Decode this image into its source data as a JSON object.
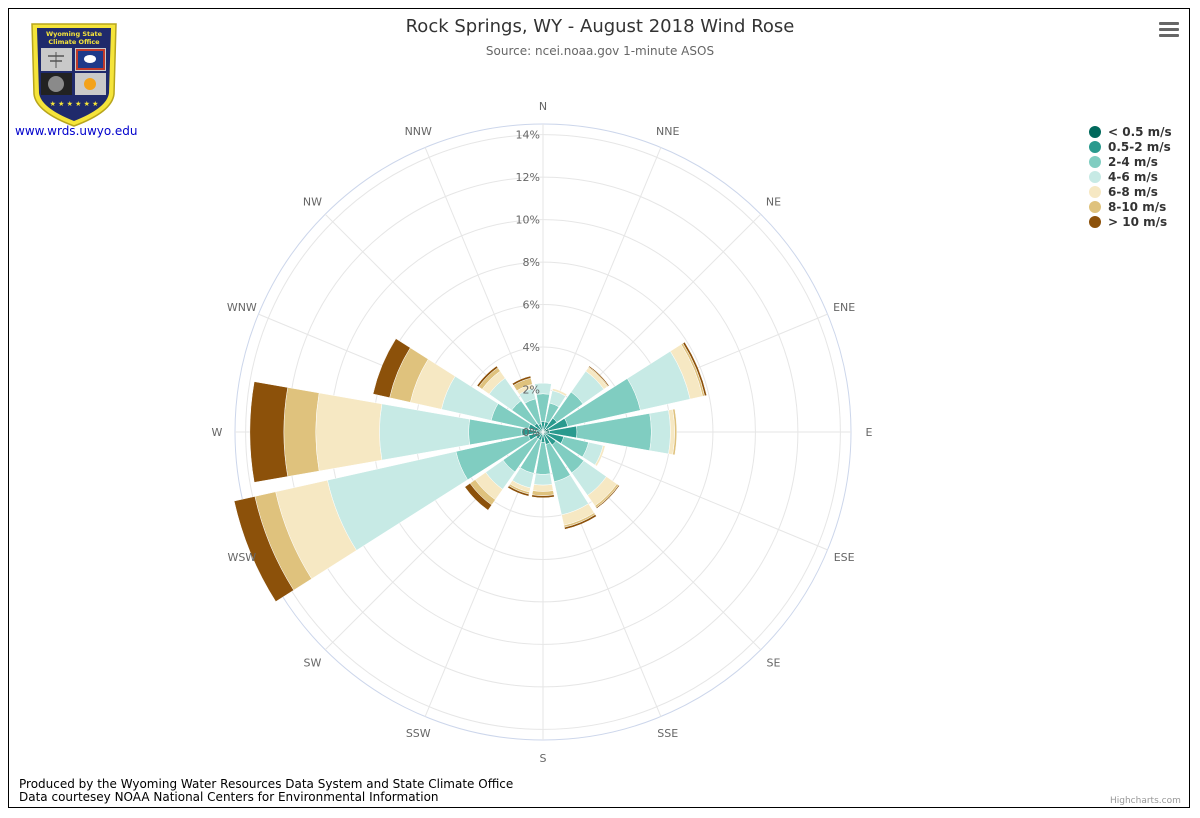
{
  "header": {
    "title": "Rock Springs, WY - August 2018 Wind Rose",
    "subtitle": "Source: ncei.noaa.gov 1-minute ASOS"
  },
  "logo": {
    "banner_line1": "Wyoming State",
    "banner_line2": "Climate Office",
    "link_text": "www.wrds.uwyo.edu"
  },
  "footer": {
    "line1": "Produced by the Wyoming Water Resources Data System and State Climate Office",
    "line2": "Data courtesey NOAA National Centers for Environmental Information",
    "highcharts": "Highcharts.com"
  },
  "chart_data": {
    "type": "bar",
    "layout": "polar-stacked",
    "title": "Rock Springs, WY - August 2018 Wind Rose",
    "subtitle": "Source: ncei.noaa.gov 1-minute ASOS",
    "categories": [
      "N",
      "NNE",
      "NE",
      "ENE",
      "E",
      "ESE",
      "SE",
      "SSE",
      "S",
      "SSW",
      "SW",
      "WSW",
      "W",
      "WNW",
      "NW",
      "NNW"
    ],
    "radial_ticks": [
      "0%",
      "2%",
      "4%",
      "6%",
      "8%",
      "10%",
      "12%",
      "14%"
    ],
    "rlim": [
      0,
      14.5
    ],
    "legend_position": "top-right",
    "series": [
      {
        "name": "< 0.5 m/s",
        "color": "#00695c",
        "values": [
          0.1,
          0.1,
          0.2,
          0.3,
          0.3,
          0.2,
          0.15,
          0.1,
          0.1,
          0.1,
          0.1,
          0.2,
          0.3,
          0.2,
          0.1,
          0.1
        ]
      },
      {
        "name": "0.5-2 m/s",
        "color": "#2a9a8e",
        "values": [
          0.4,
          0.4,
          0.6,
          0.9,
          1.3,
          0.8,
          0.6,
          0.5,
          0.4,
          0.3,
          0.3,
          0.5,
          0.7,
          0.5,
          0.4,
          0.3
        ]
      },
      {
        "name": "2-4 m/s",
        "color": "#80cdc1",
        "values": [
          1.3,
          0.9,
          1.5,
          3.5,
          3.5,
          1.2,
          1.6,
          1.8,
          1.5,
          1.6,
          1.9,
          3.5,
          2.5,
          1.8,
          1.3,
          1.2
        ]
      },
      {
        "name": "4-6 m/s",
        "color": "#c7eae5",
        "values": [
          0.5,
          0.6,
          1.2,
          2.4,
          0.9,
          0.7,
          1.3,
          1.6,
          0.5,
          0.7,
          1.0,
          6.2,
          4.2,
          2.4,
          1.3,
          0.5
        ]
      },
      {
        "name": "6-8 m/s",
        "color": "#f6e8c3",
        "values": [
          0.0,
          0.1,
          0.2,
          0.6,
          0.2,
          0.1,
          0.6,
          0.5,
          0.3,
          0.2,
          0.6,
          2.5,
          3.0,
          1.5,
          0.4,
          0.2
        ]
      },
      {
        "name": "8-10 m/s",
        "color": "#dfc27d",
        "values": [
          0.0,
          0.0,
          0.05,
          0.1,
          0.1,
          0.0,
          0.1,
          0.1,
          0.2,
          0.1,
          0.3,
          1.0,
          1.5,
          1.0,
          0.2,
          0.3
        ]
      },
      {
        "name": "> 10 m/s",
        "color": "#8c510a",
        "values": [
          0.0,
          0.0,
          0.05,
          0.1,
          0.0,
          0.0,
          0.05,
          0.1,
          0.1,
          0.1,
          0.3,
          1.0,
          1.6,
          0.8,
          0.1,
          0.1
        ]
      }
    ]
  }
}
